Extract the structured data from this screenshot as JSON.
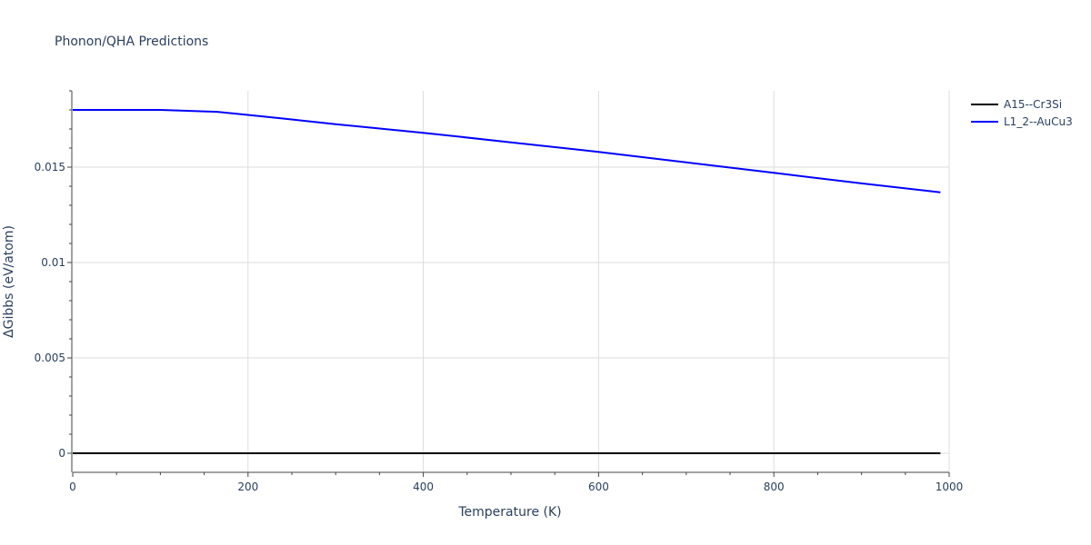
{
  "chart_data": {
    "type": "line",
    "title": "Phonon/QHA Predictions",
    "xlabel": "Temperature (K)",
    "ylabel": "ΔGibbs (eV/atom)",
    "xlim": [
      0,
      1000
    ],
    "ylim": [
      -0.001,
      0.019
    ],
    "x_ticks": [
      0,
      200,
      400,
      600,
      800,
      1000
    ],
    "x_tick_labels": [
      "0",
      "200",
      "400",
      "600",
      "800",
      "1000"
    ],
    "y_ticks": [
      0,
      0.005,
      0.01,
      0.015
    ],
    "y_tick_labels": [
      "0",
      "0.005",
      "0.01",
      "0.015"
    ],
    "grid": true,
    "legend_position": "top-right",
    "series": [
      {
        "name": "A15--Cr3Si",
        "color": "#000000",
        "x": [
          0,
          100,
          200,
          300,
          400,
          500,
          600,
          700,
          800,
          900,
          990
        ],
        "y": [
          0,
          0,
          0,
          0,
          0,
          0,
          0,
          0,
          0,
          0,
          0
        ]
      },
      {
        "name": "L1_2--AuCu3",
        "color": "#0000ff",
        "x": [
          0,
          100,
          165,
          240,
          300,
          400,
          500,
          600,
          700,
          800,
          900,
          990
        ],
        "y": [
          0.018,
          0.018,
          0.0179,
          0.01755,
          0.01725,
          0.0168,
          0.0163,
          0.0158,
          0.01525,
          0.0147,
          0.01415,
          0.01368
        ]
      }
    ]
  }
}
